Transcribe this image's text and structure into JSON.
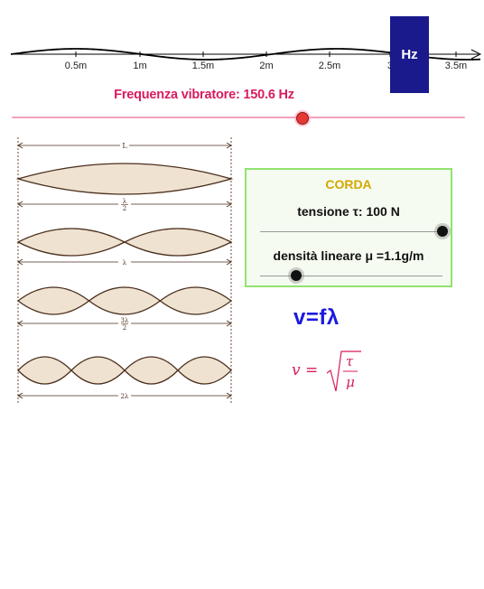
{
  "axis": {
    "ticks": [
      "0.5m",
      "1m",
      "1.5m",
      "2m",
      "2.5m",
      "3",
      "3.5m"
    ],
    "wave_color": "#000000"
  },
  "hz_button": {
    "label": "Hz",
    "color": "#1a1a8c"
  },
  "frequency": {
    "label": "Frequenza vibratore: 150.6 Hz",
    "value_hz": 150.6,
    "slider_fraction": 0.64,
    "color": "#d81b60"
  },
  "diagram": {
    "top_label": "L",
    "rows": [
      {
        "loops": 1,
        "label": "λ/2",
        "num": "λ",
        "den": "2"
      },
      {
        "loops": 2,
        "label": "λ",
        "num": "",
        "den": ""
      },
      {
        "loops": 3,
        "label": "3λ/2",
        "num": "3λ",
        "den": "2"
      },
      {
        "loops": 4,
        "label": "2λ",
        "num": "",
        "den": ""
      }
    ],
    "fill_color": "#efe2d0",
    "stroke_color": "#4a2e1c"
  },
  "corda": {
    "title": "CORDA",
    "tension_label": "tensione τ: 100 N",
    "tension_fraction": 1.0,
    "density_label": "densità lineare μ =1.1g/m",
    "density_fraction": 0.2
  },
  "formulas": {
    "v_eq_f_lambda": "v=fλ",
    "v_prefix": "v =",
    "tau": "τ",
    "mu": "μ"
  }
}
